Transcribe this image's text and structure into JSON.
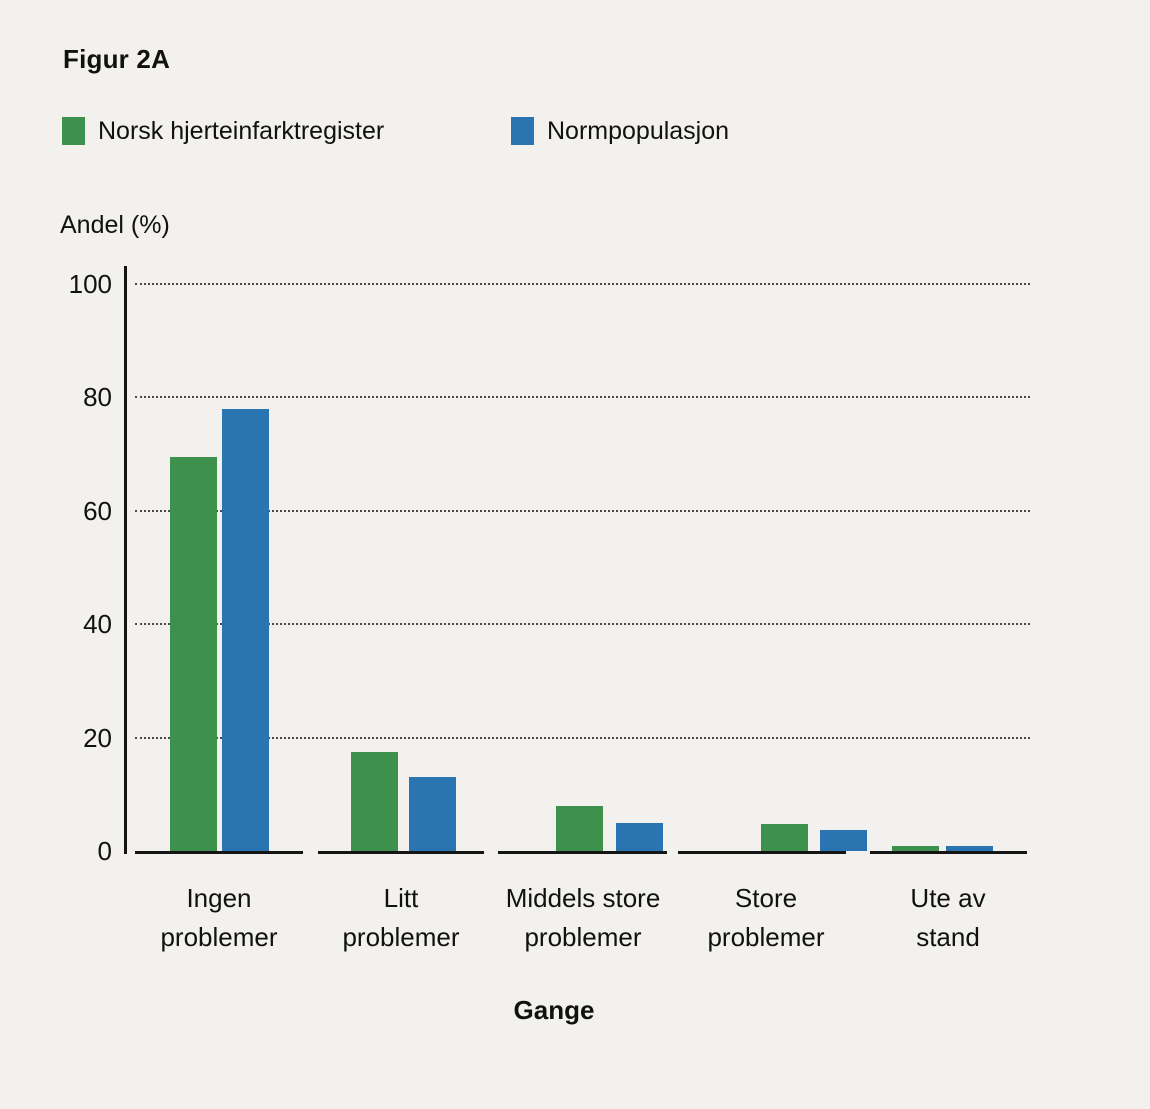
{
  "figure": {
    "title": "Figur 2A"
  },
  "legend": [
    {
      "label": "Norsk hjerteinfarktregister",
      "color": "#3e914c"
    },
    {
      "label": "Normpopulasjon",
      "color": "#2a75b1"
    }
  ],
  "y_axis": {
    "title": "Andel (%)",
    "ticks": [
      100,
      80,
      60,
      40,
      20,
      0
    ]
  },
  "x_axis": {
    "title": "Gange",
    "category_lines": [
      [
        "Ingen",
        "problemer"
      ],
      [
        "Litt",
        "problemer"
      ],
      [
        "Middels store",
        "problemer"
      ],
      [
        "Store",
        "problemer"
      ],
      [
        "Ute av",
        "stand"
      ]
    ]
  },
  "chart_data": {
    "type": "bar",
    "title": "Figur 2A",
    "xlabel": "Gange",
    "ylabel": "Andel (%)",
    "ylim": [
      0,
      100
    ],
    "grid": "horizontal dotted",
    "legend_position": "top-left",
    "categories": [
      "Ingen problemer",
      "Litt problemer",
      "Middels store problemer",
      "Store problemer",
      "Ute av stand"
    ],
    "series": [
      {
        "name": "Norsk hjerteinfarktregister",
        "color": "#3e914c",
        "values": [
          69.5,
          17.5,
          8,
          4.7,
          0.8
        ]
      },
      {
        "name": "Normpopulasjon",
        "color": "#2a75b1",
        "values": [
          78,
          13,
          5,
          3.7,
          0.8
        ]
      }
    ]
  }
}
